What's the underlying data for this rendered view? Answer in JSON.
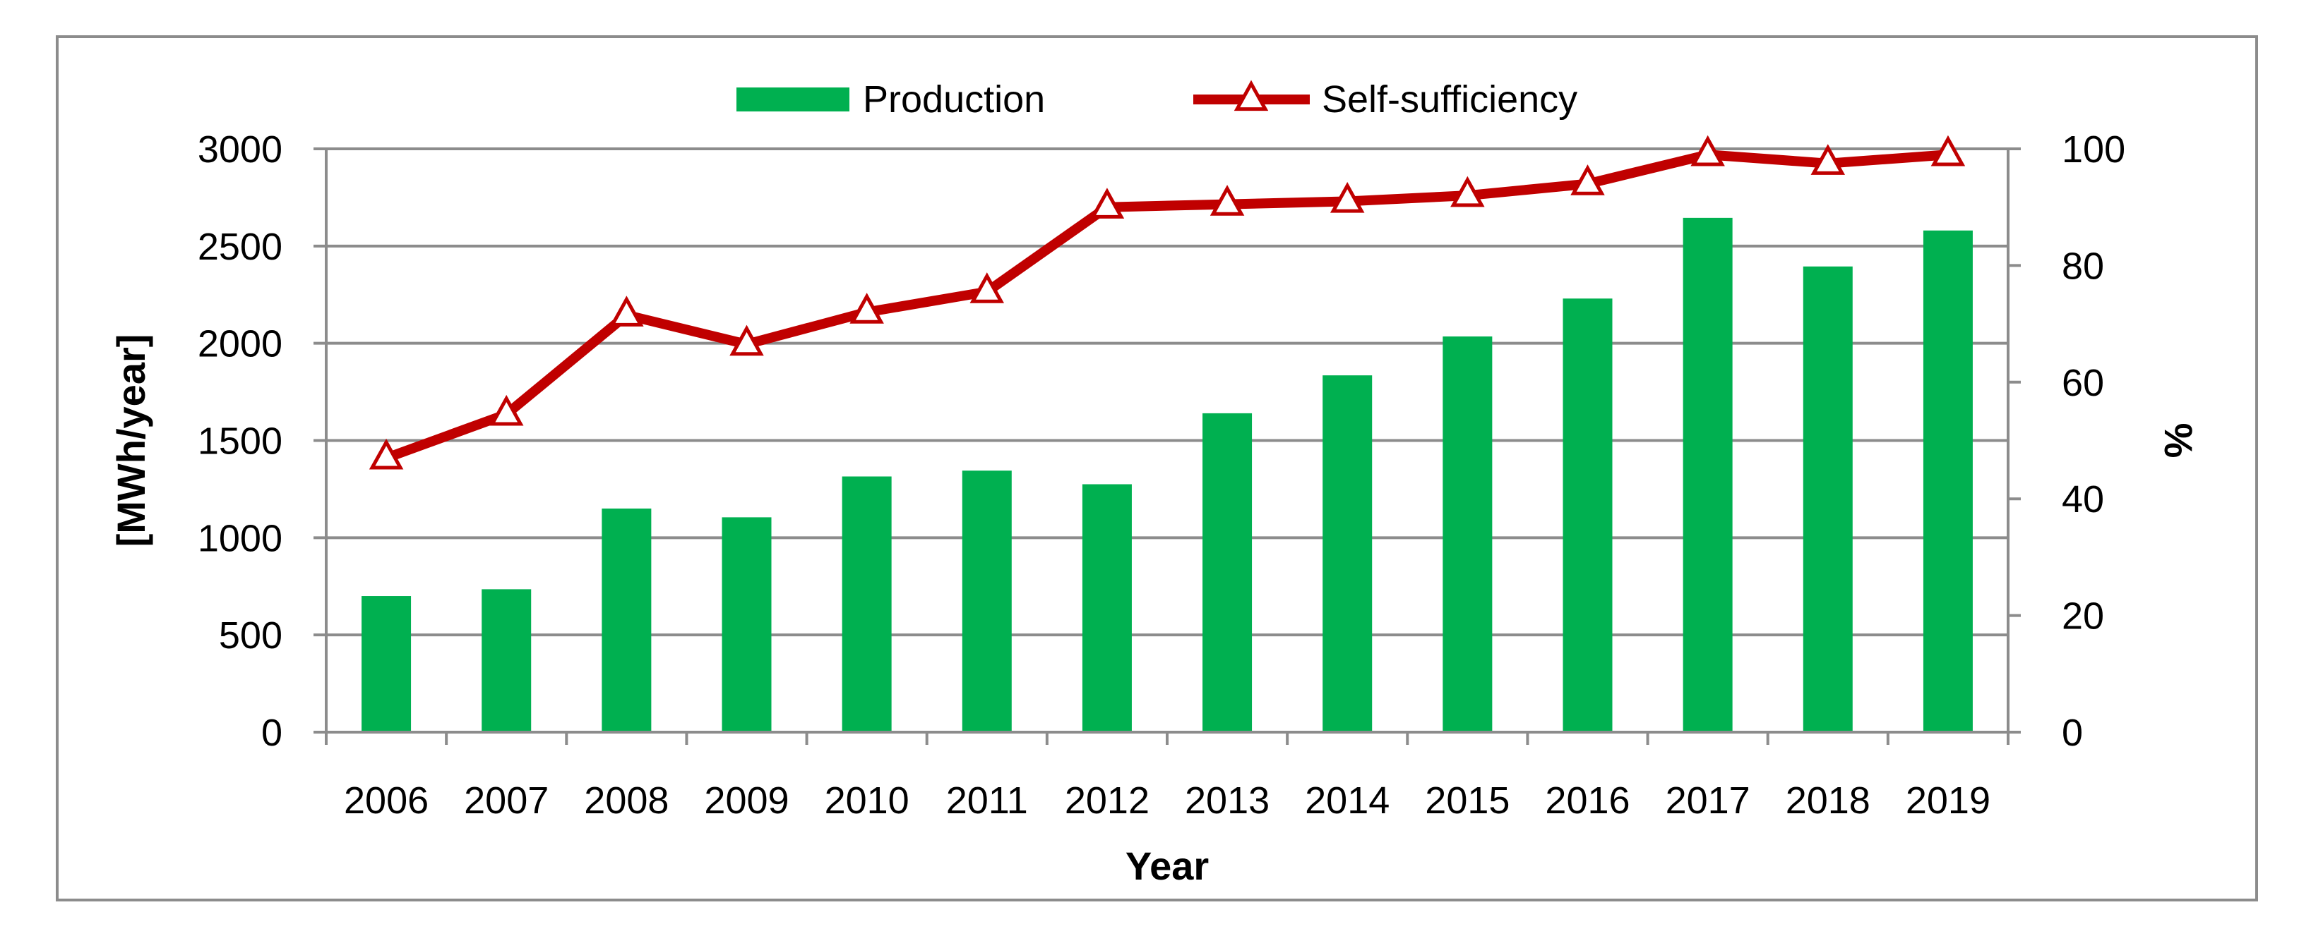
{
  "chart_data": {
    "type": "bar",
    "title": "",
    "xlabel": "Year",
    "ylabel": "[MWh/year]",
    "y2label": "%",
    "categories": [
      "2006",
      "2007",
      "2008",
      "2009",
      "2010",
      "2011",
      "2012",
      "2013",
      "2014",
      "2015",
      "2016",
      "2017",
      "2018",
      "2019"
    ],
    "ylim": [
      0,
      3000
    ],
    "yticks": [
      0,
      500,
      1000,
      1500,
      2000,
      2500,
      3000
    ],
    "y2lim": [
      0,
      100
    ],
    "y2ticks": [
      0,
      20,
      40,
      60,
      80,
      100
    ],
    "grid": true,
    "legend_position": "top-center",
    "series": [
      {
        "name": "Production",
        "type": "bar",
        "axis": "left",
        "color": "#00b050",
        "values": [
          700,
          735,
          1150,
          1105,
          1315,
          1345,
          1275,
          1640,
          1835,
          2035,
          2230,
          2645,
          2395,
          2580
        ]
      },
      {
        "name": "Self-sufficiency",
        "type": "line",
        "axis": "right",
        "color": "#c00000",
        "marker": "triangle",
        "values": [
          47,
          54.5,
          71.5,
          66.5,
          72,
          75.5,
          90,
          90.5,
          91,
          92,
          94,
          99,
          97.5,
          99
        ]
      }
    ]
  }
}
